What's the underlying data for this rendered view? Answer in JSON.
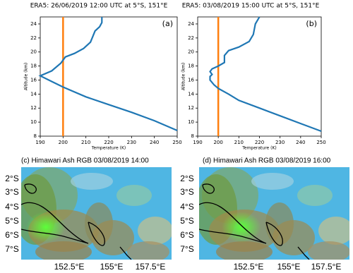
{
  "chart_data": [
    {
      "type": "line",
      "title": "ERA5: 26/06/2019 12:00 UTC at 5°S, 151°E",
      "annotation": "(a)",
      "x_label": "Temperature (K)",
      "y_label": "Altitude (km)",
      "xlim": [
        190,
        250
      ],
      "xticks": [
        190,
        200,
        210,
        220,
        230,
        240,
        250
      ],
      "ylim": [
        8,
        25
      ],
      "yticks": [
        8,
        10,
        12,
        14,
        16,
        18,
        20,
        22,
        24
      ],
      "reference_line": {
        "x": 200,
        "color": "#ff7f0e"
      },
      "series": [
        {
          "color": "#1f77b4",
          "x": [
            250,
            240,
            230,
            220,
            210,
            200,
            195,
            190,
            195,
            199,
            201,
            205,
            209,
            212,
            213,
            214,
            216,
            217,
            217
          ],
          "values": [
            8.8,
            10.2,
            11.4,
            12.5,
            13.6,
            15,
            15.8,
            16.6,
            17.3,
            18.4,
            19.3,
            19.8,
            20.5,
            21.4,
            22.2,
            23.0,
            23.6,
            24.2,
            25
          ]
        }
      ]
    },
    {
      "type": "line",
      "title": "ERA5: 03/08/2019 15:00 UTC at 5°S, 151°E",
      "annotation": "(b)",
      "x_label": "Temperature (K)",
      "y_label": "Altitude (km)",
      "xlim": [
        190,
        250
      ],
      "xticks": [
        190,
        200,
        210,
        220,
        230,
        240,
        250
      ],
      "ylim": [
        8,
        25
      ],
      "yticks": [
        8,
        10,
        12,
        14,
        16,
        18,
        20,
        22,
        24
      ],
      "reference_line": {
        "x": 200,
        "color": "#ff7f0e"
      },
      "series": [
        {
          "color": "#1f77b4",
          "x": [
            250,
            240,
            230,
            220,
            210,
            205,
            200,
            198,
            196,
            196,
            197,
            196,
            197,
            200,
            203,
            203,
            205,
            210,
            215,
            217,
            218,
            220
          ],
          "values": [
            8.7,
            9.8,
            10.9,
            12,
            13.1,
            14,
            14.8,
            15.3,
            16,
            16.5,
            16.8,
            17.2,
            17.6,
            18,
            18.5,
            19.5,
            20.2,
            20.7,
            21.5,
            22.5,
            24,
            25
          ]
        }
      ]
    }
  ],
  "images": [
    {
      "title": "(c) Himawari Ash RGB 03/08/2019 14:00",
      "y_labels": [
        "2°S",
        "3°S",
        "4°S",
        "5°S",
        "6°S",
        "7°S"
      ],
      "x_labels": [
        "152.5°E",
        "155°E",
        "157.5°E"
      ]
    },
    {
      "title": "(d) Himawari Ash RGB 03/08/2019 16:00",
      "y_labels": [
        "2°S",
        "3°S",
        "4°S",
        "5°S",
        "6°S",
        "7°S"
      ],
      "x_labels": [
        "152.5°E",
        "155°E",
        "157.5°E"
      ]
    }
  ]
}
